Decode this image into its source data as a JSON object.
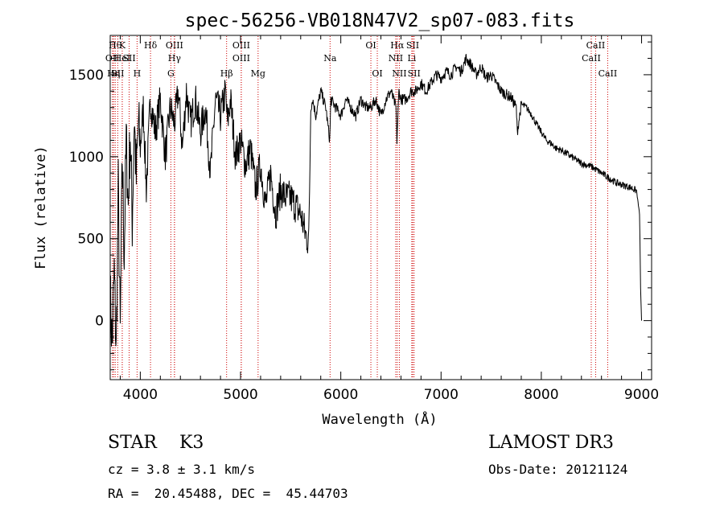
{
  "chart_data": {
    "type": "line",
    "title": "spec-56256-VB018N47V2_sp07-083.fits",
    "xlabel": "Wavelength (Å)",
    "ylabel": "Flux (relative)",
    "xlim": [
      3700,
      9100
    ],
    "ylim": [
      -360,
      1740
    ],
    "xticks": [
      4000,
      5000,
      6000,
      7000,
      8000,
      9000
    ],
    "xtick_labels": [
      "4000",
      "5000",
      "6000",
      "7000",
      "8000",
      "9000"
    ],
    "yticks": [
      0,
      500,
      1000,
      1500
    ],
    "ytick_labels": [
      "0",
      "500",
      "1000",
      "1500"
    ],
    "grid": false,
    "series": [
      {
        "color": "#000000",
        "x": [
          3700,
          3720,
          3740,
          3760,
          3780,
          3800,
          3820,
          3840,
          3860,
          3880,
          3900,
          3920,
          3940,
          3960,
          3980,
          4000,
          4030,
          4060,
          4100,
          4150,
          4200,
          4250,
          4300,
          4340,
          4380,
          4420,
          4460,
          4500,
          4550,
          4600,
          4650,
          4700,
          4750,
          4800,
          4850,
          4870,
          4900,
          4950,
          5000,
          5050,
          5100,
          5150,
          5200,
          5250,
          5300,
          5350,
          5400,
          5450,
          5500,
          5550,
          5600,
          5650,
          5680,
          5700,
          5720,
          5750,
          5800,
          5850,
          5890,
          5900,
          5950,
          6000,
          6050,
          6100,
          6150,
          6200,
          6250,
          6300,
          6350,
          6400,
          6450,
          6500,
          6550,
          6560,
          6580,
          6600,
          6650,
          6700,
          6750,
          6800,
          6850,
          6900,
          6950,
          7000,
          7050,
          7100,
          7150,
          7200,
          7250,
          7300,
          7350,
          7400,
          7450,
          7500,
          7550,
          7600,
          7650,
          7700,
          7750,
          7760,
          7800,
          7850,
          7900,
          7950,
          8000,
          8050,
          8100,
          8150,
          8200,
          8250,
          8300,
          8350,
          8400,
          8450,
          8500,
          8550,
          8600,
          8650,
          8700,
          8750,
          8800,
          8850,
          8900,
          8950,
          8980,
          8990,
          9000
        ],
        "y": [
          150,
          -150,
          300,
          -200,
          800,
          -100,
          1000,
          400,
          1100,
          700,
          1150,
          600,
          1250,
          850,
          1200,
          1050,
          1300,
          800,
          1350,
          1150,
          1350,
          1000,
          1300,
          1200,
          1400,
          1050,
          1400,
          1200,
          1350,
          1150,
          1300,
          900,
          1350,
          1250,
          1400,
          1200,
          1350,
          1000,
          1100,
          950,
          1050,
          800,
          950,
          700,
          900,
          650,
          800,
          750,
          750,
          700,
          650,
          520,
          480,
          1300,
          1350,
          1250,
          1400,
          1300,
          1100,
          1350,
          1300,
          1250,
          1350,
          1300,
          1250,
          1350,
          1300,
          1300,
          1350,
          1250,
          1350,
          1400,
          1300,
          1100,
          1400,
          1350,
          1350,
          1400,
          1400,
          1450,
          1400,
          1450,
          1500,
          1480,
          1520,
          1500,
          1550,
          1520,
          1600,
          1560,
          1500,
          1550,
          1480,
          1500,
          1450,
          1400,
          1380,
          1360,
          1300,
          1150,
          1320,
          1300,
          1260,
          1200,
          1150,
          1100,
          1080,
          1050,
          1040,
          1020,
          1000,
          980,
          960,
          950,
          940,
          920,
          900,
          880,
          860,
          840,
          830,
          820,
          810,
          790,
          650,
          200,
          0
        ]
      }
    ],
    "spectral_lines": [
      {
        "x": 3750,
        "text": "Hθ",
        "row": 1
      },
      {
        "x": 3722,
        "text": "OII",
        "row": 2
      },
      {
        "x": 3734,
        "text": "Hη",
        "row": 3
      },
      {
        "x": 3820,
        "text": "K",
        "row": 1
      },
      {
        "x": 3820,
        "text": "HeI",
        "row": 2
      },
      {
        "x": 3775,
        "text": "SII",
        "row": 3
      },
      {
        "x": 3889,
        "text": "SII",
        "row": 2
      },
      {
        "x": 3968,
        "text": "H",
        "row": 3
      },
      {
        "x": 4102,
        "text": "Hδ",
        "row": 1
      },
      {
        "x": 4341,
        "text": "OIII",
        "row": 1
      },
      {
        "x": 4341,
        "text": "Hγ",
        "row": 2
      },
      {
        "x": 4305,
        "text": "G",
        "row": 3
      },
      {
        "x": 4861,
        "text": "Hβ",
        "row": 3
      },
      {
        "x": 5007,
        "text": "OIII",
        "row": 1
      },
      {
        "x": 5007,
        "text": "OIII",
        "row": 2
      },
      {
        "x": 5175,
        "text": "Mg",
        "row": 3
      },
      {
        "x": 5893,
        "text": "Na",
        "row": 2
      },
      {
        "x": 6300,
        "text": "OI",
        "row": 1
      },
      {
        "x": 6364,
        "text": "OI",
        "row": 3
      },
      {
        "x": 6563,
        "text": "Hα",
        "row": 1
      },
      {
        "x": 6548,
        "text": "NII",
        "row": 2
      },
      {
        "x": 6584,
        "text": "NII",
        "row": 3
      },
      {
        "x": 6717,
        "text": "SII",
        "row": 1
      },
      {
        "x": 6708,
        "text": "Li",
        "row": 2
      },
      {
        "x": 6731,
        "text": "SII",
        "row": 3
      },
      {
        "x": 8542,
        "text": "CaII",
        "row": 1
      },
      {
        "x": 8498,
        "text": "CaII",
        "row": 2
      },
      {
        "x": 8662,
        "text": "CaII",
        "row": 3
      }
    ],
    "line_color": "#cc0000"
  },
  "info": {
    "classification": "STAR    K3",
    "cz": "cz = 3.8 ± 3.1 km/s",
    "radec": "RA =  20.45488, DEC =  45.44703",
    "survey": "LAMOST DR3",
    "obs_date": "Obs-Date: 20121124"
  }
}
